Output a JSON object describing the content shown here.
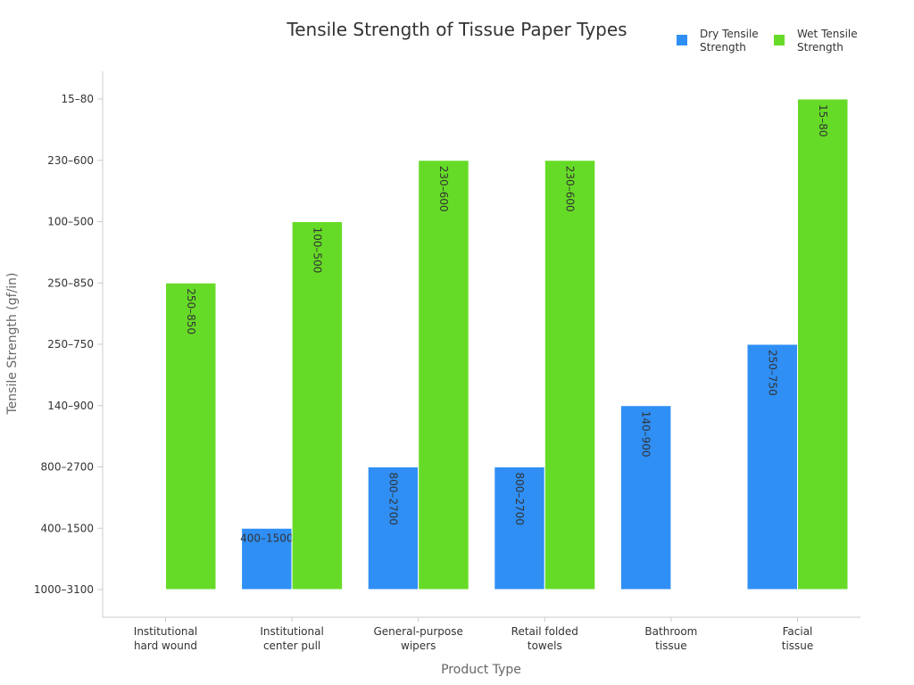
{
  "chart_data": {
    "type": "bar",
    "title": "Tensile Strength of Tissue Paper Types",
    "xlabel": "Product Type",
    "ylabel": "Tensile Strength (gf/in)",
    "y_categories": [
      "1000–3100",
      "400–1500",
      "800–2700",
      "140–900",
      "250–750",
      "250–850",
      "100–500",
      "230–600",
      "15–80"
    ],
    "categories": [
      [
        "Institutional",
        "hard wound"
      ],
      [
        "Institutional",
        "center pull"
      ],
      [
        "General-purpose",
        "wipers"
      ],
      [
        "Retail folded",
        "towels"
      ],
      [
        "Bathroom",
        "tissue"
      ],
      [
        "Facial",
        "tissue"
      ]
    ],
    "series": [
      {
        "name": [
          "Dry Tensile",
          "Strength"
        ],
        "color": "#2f8ff5",
        "values": [
          null,
          "400–1500",
          "800–2700",
          "800–2700",
          "140–900",
          "250–750"
        ]
      },
      {
        "name": [
          "Wet Tensile",
          "Strength"
        ],
        "color": "#66db27",
        "values": [
          "250–850",
          "100–500",
          "230–600",
          "230–600",
          null,
          "15–80"
        ]
      }
    ],
    "legend_position": "top-right",
    "grid": false
  }
}
